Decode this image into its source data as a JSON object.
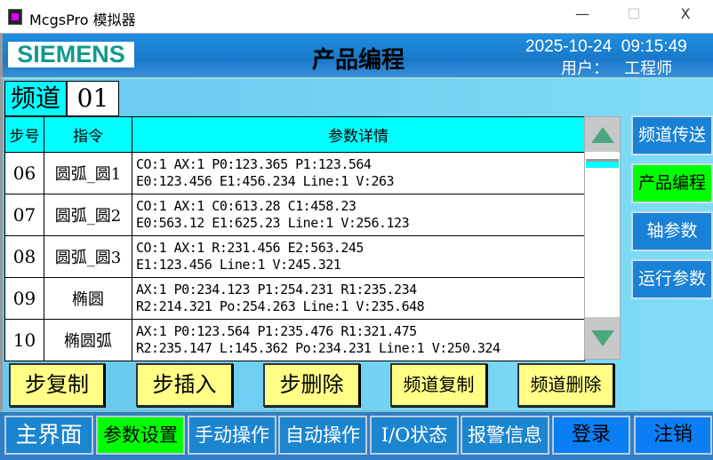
{
  "window": {
    "title": "McgsPro 模拟器",
    "minimize": "—",
    "maximize": "☐",
    "close": "X"
  },
  "header": {
    "logo": "SIEMENS",
    "title": "产品编程",
    "date": "2025-10-24",
    "time": "09:15:49",
    "user_label": "用户：",
    "user": "工程师"
  },
  "channel": {
    "label": "频道",
    "value": "01"
  },
  "table": {
    "headers": [
      "步号",
      "指令",
      "参数详情"
    ],
    "rows": [
      {
        "step": "06",
        "cmd": "圆弧_圆1",
        "line1": "CO:1 AX:1 P0:123.365 P1:123.564",
        "line2": "E0:123.456 E1:456.234 Line:1 V:263"
      },
      {
        "step": "07",
        "cmd": "圆弧_圆2",
        "line1": "CO:1 AX:1 C0:613.28 C1:458.23",
        "line2": "E0:563.12 E1:625.23 Line:1 V:256.123"
      },
      {
        "step": "08",
        "cmd": "圆弧_圆3",
        "line1": "CO:1 AX:1 R:231.456 E2:563.245",
        "line2": "E1:123.456 Line:1 V:245.321"
      },
      {
        "step": "09",
        "cmd": "椭圆",
        "line1": "AX:1 P0:234.123 P1:254.231 R1:235.234",
        "line2": "R2:214.321 Po:254.263 Line:1 V:235.648"
      },
      {
        "step": "10",
        "cmd": "椭圆弧",
        "line1": "AX:1 P0:123.564 P1:235.476 R1:321.475",
        "line2": "R2:235.147 L:145.362 Po:234.231 Line:1 V:250.324"
      }
    ]
  },
  "side_buttons": [
    "频道传送",
    "产品编程",
    "轴参数",
    "运行参数"
  ],
  "action_buttons": [
    "步复制",
    "步插入",
    "步删除",
    "频道复制",
    "频道删除"
  ],
  "nav": [
    "主界面",
    "参数设置",
    "手动操作",
    "自动操作",
    "I/O状态",
    "报警信息",
    "登录",
    "注销"
  ],
  "colors": {
    "accent_active": "#00ff00",
    "header_cyan": "#00ffff",
    "button_yellow": "#ffff88",
    "nav_blue": "#1c85d0"
  }
}
